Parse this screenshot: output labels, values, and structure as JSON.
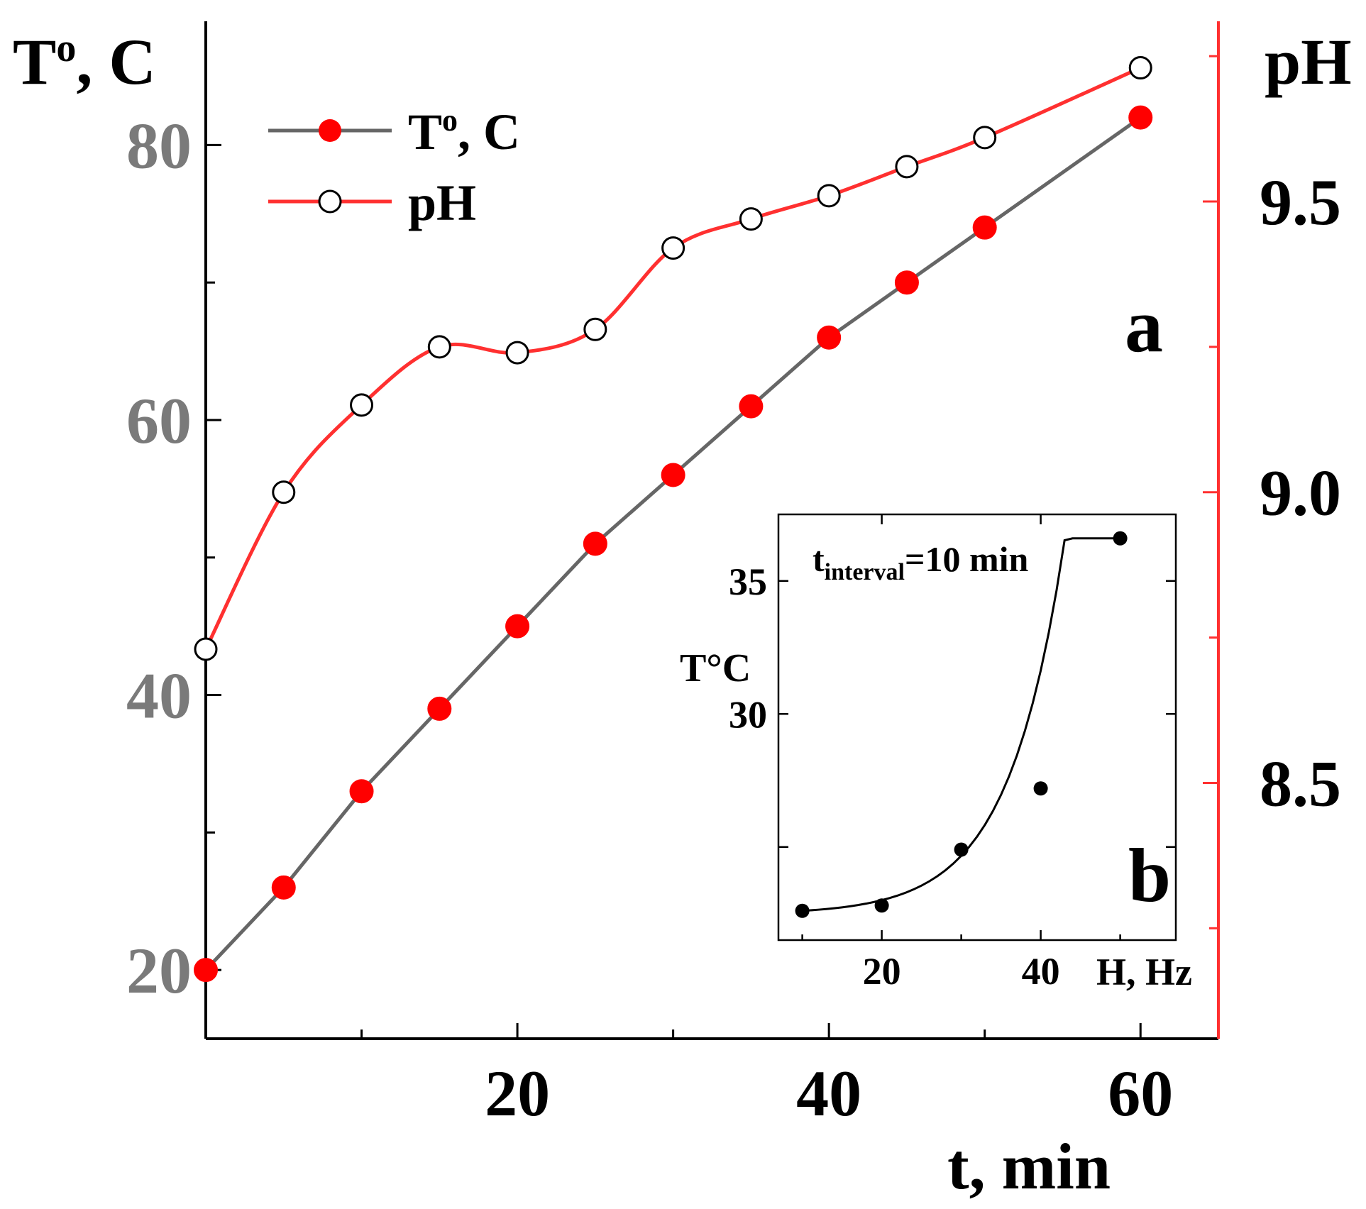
{
  "chart_data": [
    {
      "id": "main",
      "type": "line",
      "panel_label": "a",
      "xlabel": "t, min",
      "xlim": [
        0,
        65
      ],
      "x_ticks": [
        "20",
        "40",
        "60"
      ],
      "left_axis": {
        "label_main": "T",
        "label_sup": "o",
        "label_rest": ", C",
        "ylim": [
          15,
          89
        ],
        "ticks": [
          "20",
          "40",
          "60",
          "80"
        ]
      },
      "right_axis": {
        "label": "pH",
        "ylim": [
          8.06,
          9.81
        ],
        "ticks": [
          "8.5",
          "9.0",
          "9.5"
        ]
      },
      "series": [
        {
          "name": "T°, C",
          "legend_main": "T",
          "legend_sup": "o",
          "legend_rest": ", C",
          "axis": "left",
          "x": [
            0,
            5,
            10,
            15,
            20,
            25,
            30,
            35,
            40,
            45,
            50,
            60
          ],
          "values": [
            20,
            26,
            33,
            39,
            45,
            51,
            56,
            61,
            66,
            70,
            74,
            82
          ]
        },
        {
          "name": "pH",
          "legend_main": "pH",
          "axis": "right",
          "x": [
            0,
            5,
            10,
            15,
            20,
            25,
            30,
            35,
            40,
            45,
            50,
            60
          ],
          "values": [
            8.73,
            9.0,
            9.15,
            9.25,
            9.24,
            9.28,
            9.42,
            9.47,
            9.51,
            9.56,
            9.61,
            9.73
          ]
        }
      ]
    },
    {
      "id": "inset",
      "type": "scatter",
      "panel_label": "b",
      "xlabel": "H, Hz",
      "ylabel": "T°C",
      "annotation_main": "t",
      "annotation_sub": "interval",
      "annotation_rest": "=10 min",
      "xlim": [
        7,
        57
      ],
      "ylim": [
        21.5,
        37.5
      ],
      "x_ticks": [
        "20",
        "40"
      ],
      "y_ticks": [
        "30",
        "35"
      ],
      "x": [
        10,
        20,
        30,
        40,
        50
      ],
      "values": [
        22.6,
        22.8,
        24.9,
        27.2,
        36.6
      ]
    }
  ],
  "colors": {
    "temperature_line": "#666666",
    "temperature_marker": "#ff0000",
    "ph_line": "#ff3030",
    "left_tick_label": "#7a7a7a",
    "axis": "#000000"
  }
}
